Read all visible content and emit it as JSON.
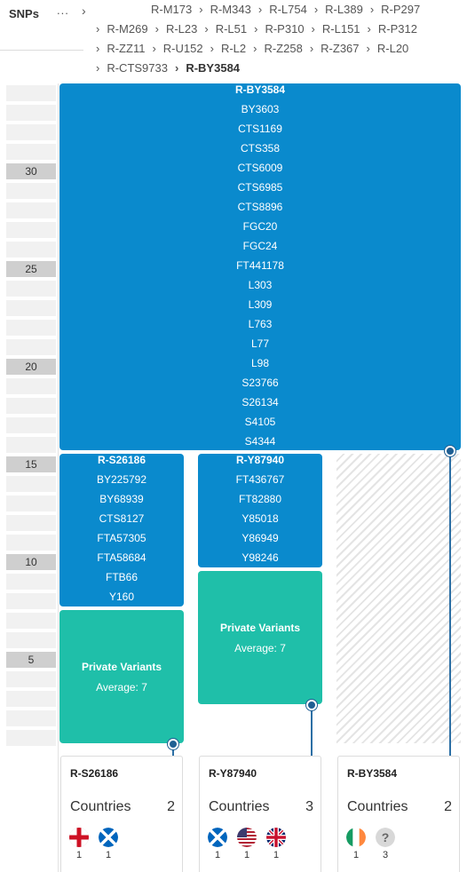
{
  "header": {
    "snps_label": "SNPs",
    "ellipsis": "...",
    "breadcrumbs": [
      "R-M173",
      "R-M343",
      "R-L754",
      "R-L389",
      "R-P297",
      "R-M269",
      "R-L23",
      "R-L51",
      "R-P310",
      "R-L151",
      "R-P312",
      "R-ZZ11",
      "R-U152",
      "R-L2",
      "R-Z258",
      "R-Z367",
      "R-L20",
      "R-CTS9733",
      "R-BY3584"
    ]
  },
  "ruler": {
    "labels": [
      "30",
      "25",
      "20",
      "15",
      "10",
      "5"
    ]
  },
  "blocks": {
    "main": [
      "R-BY3584",
      "BY3603",
      "CTS1169",
      "CTS358",
      "CTS6009",
      "CTS6985",
      "CTS8896",
      "FGC20",
      "FGC24",
      "FT441178",
      "L303",
      "L309",
      "L763",
      "L77",
      "L98",
      "S23766",
      "S26134",
      "S4105",
      "S4344"
    ],
    "left": [
      "R-S26186",
      "BY225792",
      "BY68939",
      "CTS8127",
      "FTA57305",
      "FTA58684",
      "FTB66",
      "Y160"
    ],
    "middle": [
      "R-Y87940",
      "FT436767",
      "FT82880",
      "Y85018",
      "Y86949",
      "Y98246"
    ]
  },
  "private_variants": {
    "left": {
      "title": "Private Variants",
      "average": "Average: 7"
    },
    "middle": {
      "title": "Private Variants",
      "average": "Average: 7"
    }
  },
  "cards": [
    {
      "title": "R-S26186",
      "countries_label": "Countries",
      "count": "2",
      "flags": [
        {
          "icon": "england-flag-icon",
          "num": "1"
        },
        {
          "icon": "scotland-flag-icon",
          "num": "1"
        }
      ]
    },
    {
      "title": "R-Y87940",
      "countries_label": "Countries",
      "count": "3",
      "flags": [
        {
          "icon": "scotland-flag-icon",
          "num": "1"
        },
        {
          "icon": "usa-flag-icon",
          "num": "1"
        },
        {
          "icon": "uk-flag-icon",
          "num": "1"
        }
      ]
    },
    {
      "title": "R-BY3584",
      "countries_label": "Countries",
      "count": "2",
      "flags": [
        {
          "icon": "ireland-flag-icon",
          "num": "1"
        },
        {
          "icon": "unknown-country-icon",
          "num": "3"
        }
      ]
    }
  ],
  "colors": {
    "snp_block": "#0a8acd",
    "private_block": "#1fbfa9",
    "node": "#1f5f93"
  }
}
